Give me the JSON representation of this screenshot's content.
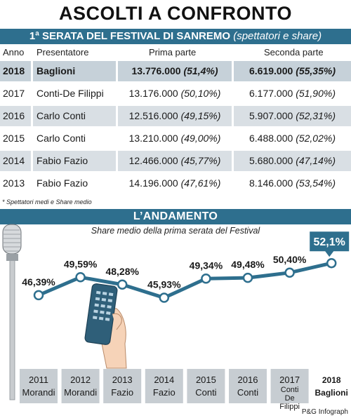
{
  "header": {
    "title": "ASCOLTI A CONFRONTO",
    "table_title": "1ª SERATA DEL FESTIVAL DI SANREMO",
    "table_subtitle": "(spettatori e share)",
    "columns": [
      "Anno",
      "Presentatore",
      "Prima parte",
      "Seconda parte"
    ]
  },
  "table": {
    "rows": [
      {
        "year": "2018",
        "host": "Baglioni",
        "p1_viewers": "13.776.000",
        "p1_share": "(51,4%)",
        "p2_viewers": "6.619.000",
        "p2_share": "(55,35%)"
      },
      {
        "year": "2017",
        "host": "Conti-De Filippi",
        "p1_viewers": "13.176.000",
        "p1_share": "(50,10%)",
        "p2_viewers": "6.177.000",
        "p2_share": "(51,90%)"
      },
      {
        "year": "2016",
        "host": "Carlo Conti",
        "p1_viewers": "12.516.000",
        "p1_share": "(49,15%)",
        "p2_viewers": "5.907.000",
        "p2_share": "(52,31%)"
      },
      {
        "year": "2015",
        "host": "Carlo Conti",
        "p1_viewers": "13.210.000",
        "p1_share": "(49,00%)",
        "p2_viewers": "6.488.000",
        "p2_share": "(52,02%)"
      },
      {
        "year": "2014",
        "host": "Fabio Fazio",
        "p1_viewers": "12.466.000",
        "p1_share": "(45,77%)",
        "p2_viewers": "5.680.000",
        "p2_share": "(47,14%)"
      },
      {
        "year": "2013",
        "host": "Fabio Fazio",
        "p1_viewers": "14.196.000",
        "p1_share": "(47,61%)",
        "p2_viewers": "8.146.000",
        "p2_share": "(53,54%)"
      }
    ],
    "note": "* Spettatori medi e Share medio"
  },
  "trend": {
    "title": "L’ANDAMENTO",
    "caption": "Share medio della prima serata del Festival"
  },
  "colors": {
    "band": "#2e6f8e",
    "line": "#2e6f8e",
    "row_shade": "#d9dfe4",
    "axis_box": "#c7cdd2"
  },
  "chart_data": {
    "type": "line",
    "title": "Share medio della prima serata del Festival",
    "categories": [
      "2011 Morandi",
      "2012 Morandi",
      "2013 Fazio",
      "2014 Fazio",
      "2015 Conti",
      "2016 Conti",
      "2017 Conti De Filippi",
      "2018 Baglioni"
    ],
    "labels": [
      {
        "year": "2011",
        "name": "Morandi"
      },
      {
        "year": "2012",
        "name": "Morandi"
      },
      {
        "year": "2013",
        "name": "Fazio"
      },
      {
        "year": "2014",
        "name": "Fazio"
      },
      {
        "year": "2015",
        "name": "Conti"
      },
      {
        "year": "2016",
        "name": "Conti"
      },
      {
        "year": "2017",
        "name": "Conti De Filippi"
      },
      {
        "year": "2018",
        "name": "Baglioni"
      }
    ],
    "values": [
      46.39,
      49.59,
      48.28,
      45.93,
      49.34,
      49.48,
      50.4,
      52.1
    ],
    "value_labels": [
      "46,39%",
      "49,59%",
      "48,28%",
      "45,93%",
      "49,34%",
      "49,48%",
      "50,40%",
      "52,1%"
    ],
    "highlight_index": 7,
    "ylim": [
      44,
      54
    ]
  },
  "footer": {
    "credit": "P&G Infograph"
  }
}
